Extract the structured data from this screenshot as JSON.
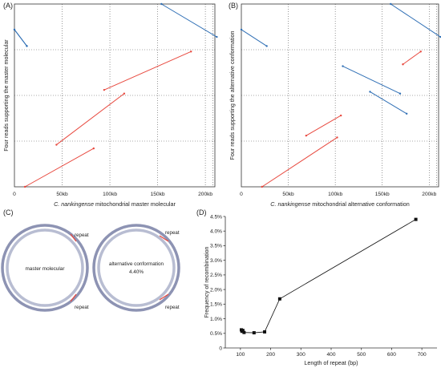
{
  "panels": {
    "A": {
      "letter": "(A)"
    },
    "B": {
      "letter": "(B)"
    },
    "C": {
      "letter": "(C)"
    },
    "D": {
      "letter": "(D)"
    }
  },
  "dotplots": {
    "A": {
      "ylabel": "Four reads supporting the master molecular",
      "xlabel_italic": "C. nankingense",
      "xlabel_rest": " mitochondrial master molecular"
    },
    "B": {
      "ylabel": "Four reads supporting the alternative conformation",
      "xlabel_italic": "C. nankingense",
      "xlabel_rest": " mitochondrial alternative conformation"
    }
  },
  "circles": {
    "master_label": "master molecular",
    "alt_label_1": "alternative conformation",
    "alt_label_2": "4.40%",
    "repeat_label": "repeat"
  },
  "colors": {
    "blue": "#2f6fb5",
    "red": "#e8493f",
    "ring_outer": "#8d93b3",
    "ring_inner": "#b8bdd2"
  },
  "chart_data": [
    {
      "type": "scatter",
      "panel": "A",
      "xlabel": "C. nankingense mitochondrial master molecular",
      "ylabel": "Four reads supporting the master molecular",
      "xlim": [
        0,
        210
      ],
      "x_ticks": [
        {
          "value": 0,
          "label": "0"
        },
        {
          "value": 50,
          "label": "50kb"
        },
        {
          "value": 100,
          "label": "100kb"
        },
        {
          "value": 150,
          "label": "150kb"
        },
        {
          "value": 200,
          "label": "200kb"
        }
      ],
      "grid": "dotted",
      "series": [
        {
          "color": "blue",
          "segments": [
            {
              "x": [
                0,
                13
              ],
              "y": [
                0.86,
                0.77
              ]
            },
            {
              "x": [
                0,
                13
              ],
              "y": [
                0.86,
                0.77
              ]
            },
            {
              "x": [
                154,
                212
              ],
              "y": [
                1.0,
                0.82
              ]
            }
          ]
        },
        {
          "color": "red",
          "segments": [
            {
              "x": [
                94,
                185
              ],
              "y": [
                0.53,
                0.74
              ]
            },
            {
              "x": [
                44,
                115
              ],
              "y": [
                0.23,
                0.51
              ]
            },
            {
              "x": [
                11,
                83
              ],
              "y": [
                0.0,
                0.21
              ]
            }
          ]
        }
      ]
    },
    {
      "type": "scatter",
      "panel": "B",
      "xlabel": "C. nankingense mitochondrial alternative conformation",
      "ylabel": "Four reads supporting the alternative conformation",
      "xlim": [
        0,
        210
      ],
      "x_ticks": [
        {
          "value": 0,
          "label": "0"
        },
        {
          "value": 50,
          "label": "50kb"
        },
        {
          "value": 100,
          "label": "100kb"
        },
        {
          "value": 150,
          "label": "150kb"
        },
        {
          "value": 200,
          "label": "200kb"
        }
      ],
      "grid": "dotted",
      "series": [
        {
          "color": "blue",
          "segments": [
            {
              "x": [
                0,
                27
              ],
              "y": [
                0.86,
                0.77
              ]
            },
            {
              "x": [
                159,
                212
              ],
              "y": [
                1.0,
                0.82
              ]
            },
            {
              "x": [
                108,
                169
              ],
              "y": [
                0.66,
                0.51
              ]
            },
            {
              "x": [
                137,
                176
              ],
              "y": [
                0.52,
                0.4
              ]
            }
          ]
        },
        {
          "color": "red",
          "segments": [
            {
              "x": [
                172,
                191
              ],
              "y": [
                0.67,
                0.74
              ]
            },
            {
              "x": [
                69,
                106
              ],
              "y": [
                0.28,
                0.39
              ]
            },
            {
              "x": [
                22,
                102
              ],
              "y": [
                0.0,
                0.27
              ]
            }
          ]
        }
      ]
    },
    {
      "type": "line",
      "panel": "D",
      "xlabel": "Length of repeat (bp)",
      "ylabel": "Frequency of recombination",
      "xlim": [
        50,
        750
      ],
      "ylim": [
        0,
        4.5
      ],
      "x_ticks": [
        100,
        200,
        300,
        400,
        500,
        600,
        700
      ],
      "y_ticks": [
        "0",
        "0.5%",
        "1.0%",
        "1.5%",
        "2.0%",
        "2.5%",
        "3.0%",
        "3.5%",
        "4.0%",
        "4.5%"
      ],
      "grid": false,
      "x": [
        103,
        105,
        108,
        112,
        145,
        180,
        230,
        680
      ],
      "y": [
        0.62,
        0.57,
        0.6,
        0.53,
        0.52,
        0.55,
        1.68,
        4.4
      ]
    }
  ]
}
